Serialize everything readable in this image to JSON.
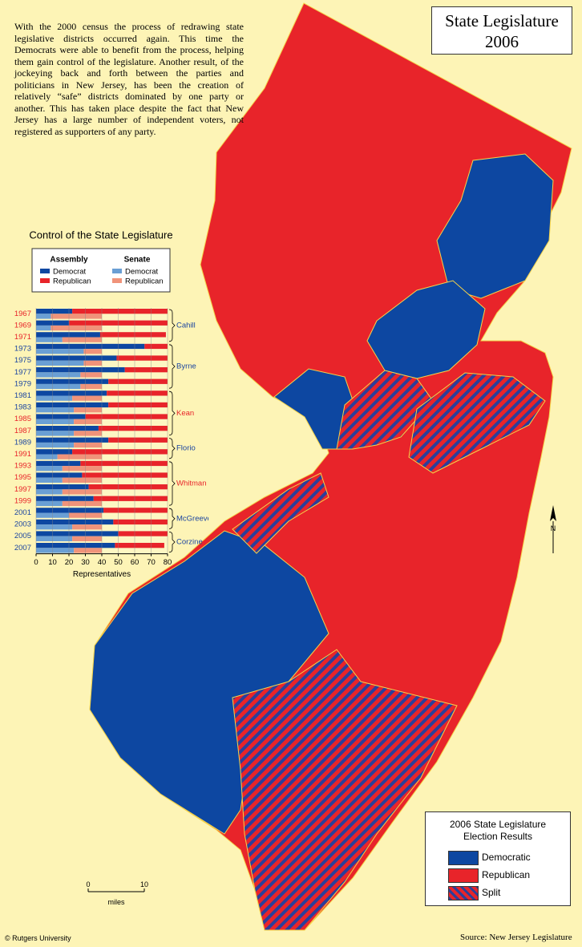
{
  "header": {
    "title_line1": "State Legislature",
    "title_line2": "2006"
  },
  "intro": "With the 2000 census the process of redrawing state legislative districts occurred again. This time the Democrats were able to benefit from the process, helping them gain control of the legislature. Another result, of the jockeying back and forth between the parties and politicians in New Jersey, has been the creation of relatively “safe” districts dominated by one party or another. This has taken place despite the fact that New Jersey has a large number of independent voters, not registered as supporters of any party.",
  "chart_data": {
    "type": "bar",
    "orientation": "horizontal",
    "stacked": true,
    "title": "Control of the State Legislature",
    "categories": [
      "1967",
      "1969",
      "1971",
      "1973",
      "1975",
      "1977",
      "1979",
      "1981",
      "1983",
      "1985",
      "1987",
      "1989",
      "1991",
      "1993",
      "1995",
      "1997",
      "1999",
      "2001",
      "2003",
      "2005",
      "2007"
    ],
    "category_colors": [
      "#e8242a",
      "#e8242a",
      "#e8242a",
      "#1b45a0",
      "#1b45a0",
      "#1b45a0",
      "#1b45a0",
      "#1b45a0",
      "#1b45a0",
      "#e8242a",
      "#e8242a",
      "#1b45a0",
      "#e8242a",
      "#e8242a",
      "#e8242a",
      "#e8242a",
      "#e8242a",
      "#1b45a0",
      "#1b45a0",
      "#1b45a0",
      "#1b45a0"
    ],
    "series": [
      {
        "group": "Assembly",
        "name": "Democrat",
        "color": "#0d47a1",
        "values": [
          22,
          20,
          39,
          66,
          49,
          54,
          44,
          43,
          44,
          30,
          38,
          44,
          22,
          27,
          28,
          32,
          35,
          41,
          47,
          50,
          48
        ]
      },
      {
        "group": "Assembly",
        "name": "Republican",
        "color": "#e8242a",
        "values": [
          58,
          60,
          40,
          14,
          31,
          26,
          36,
          37,
          36,
          50,
          42,
          36,
          58,
          53,
          52,
          48,
          45,
          39,
          33,
          30,
          30
        ]
      },
      {
        "group": "Senate",
        "name": "Democrat",
        "color": "#6a9fd4",
        "values": [
          9,
          9,
          16,
          29,
          29,
          27,
          27,
          22,
          23,
          23,
          23,
          23,
          13,
          16,
          16,
          16,
          16,
          20,
          22,
          22,
          23
        ]
      },
      {
        "group": "Senate",
        "name": "Republican",
        "color": "#f0937a",
        "values": [
          31,
          31,
          24,
          11,
          11,
          13,
          13,
          18,
          17,
          17,
          17,
          17,
          27,
          24,
          24,
          24,
          24,
          20,
          18,
          18,
          17
        ]
      }
    ],
    "governors": [
      {
        "name": "Cahill",
        "color": "#1b45a0",
        "from": "1967",
        "to": "1971"
      },
      {
        "name": "Byrne",
        "color": "#1b45a0",
        "from": "1973",
        "to": "1979"
      },
      {
        "name": "Kean",
        "color": "#e8242a",
        "from": "1981",
        "to": "1987"
      },
      {
        "name": "Florio",
        "color": "#1b45a0",
        "from": "1989",
        "to": "1991"
      },
      {
        "name": "Whitman",
        "color": "#e8242a",
        "from": "1993",
        "to": "1999"
      },
      {
        "name": "McGreevey",
        "color": "#1b45a0",
        "from": "2001",
        "to": "2003"
      },
      {
        "name": "Corzine",
        "color": "#1b45a0",
        "from": "2005",
        "to": "2007"
      }
    ],
    "xlim": [
      0,
      80
    ],
    "xticks": [
      0,
      10,
      20,
      30,
      40,
      50,
      60,
      70,
      80
    ],
    "xlabel": "Representatives",
    "grid": true
  },
  "map_legend": {
    "title": "2006 State Legislature Election Results",
    "items": [
      {
        "label": "Democratic",
        "color": "#0d47a1"
      },
      {
        "label": "Republican",
        "color": "#e8242a"
      },
      {
        "label": "Split",
        "color": "striped"
      }
    ]
  },
  "scale": {
    "ticks": [
      "0",
      "10"
    ],
    "unit": "miles"
  },
  "north": "N",
  "credit": "© Rutgers University",
  "source": "Source:  New Jersey Legislature"
}
